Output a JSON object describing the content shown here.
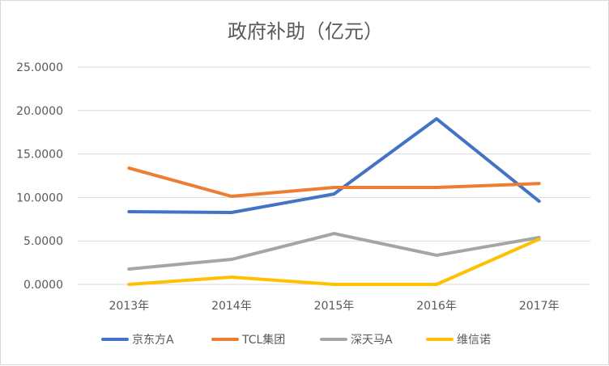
{
  "chart_data": {
    "type": "line",
    "title": "政府补助（亿元）",
    "categories": [
      "2013年",
      "2014年",
      "2015年",
      "2016年",
      "2017年"
    ],
    "ylim": [
      0,
      25
    ],
    "yticks": [
      "0.0000",
      "5.0000",
      "10.0000",
      "15.0000",
      "20.0000",
      "25.0000"
    ],
    "grid": true,
    "legend": "bottom",
    "series": [
      {
        "name": "京东方A",
        "color": "#4472C4",
        "values": [
          8.36,
          8.27,
          10.4,
          19.05,
          9.57
        ]
      },
      {
        "name": "TCL集团",
        "color": "#ED7D31",
        "values": [
          13.38,
          10.13,
          11.15,
          11.15,
          11.6
        ]
      },
      {
        "name": "深天马A",
        "color": "#A5A5A5",
        "values": [
          1.77,
          2.88,
          5.85,
          3.35,
          5.39
        ]
      },
      {
        "name": "维信诺",
        "color": "#FFC000",
        "values": [
          0.0,
          0.84,
          0.0,
          0.0,
          5.2
        ]
      }
    ]
  }
}
